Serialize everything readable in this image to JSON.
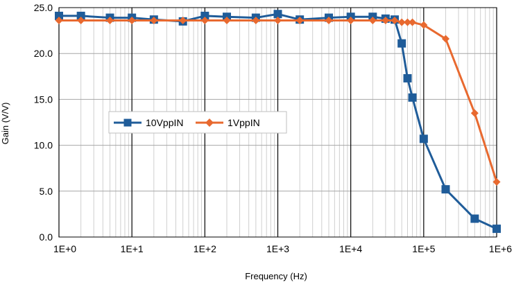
{
  "chart_data": {
    "type": "line",
    "xlabel": "Frequency (Hz)",
    "ylabel": "Gain (V/V)",
    "x_scale": "log",
    "xlim": [
      1,
      1000000
    ],
    "ylim": [
      0,
      25
    ],
    "x_ticks": [
      1,
      10,
      100,
      1000,
      10000,
      100000,
      1000000
    ],
    "x_tick_labels": [
      "1E+0",
      "1E+1",
      "1E+2",
      "1E+3",
      "1E+4",
      "1E+5",
      "1E+6"
    ],
    "y_ticks": [
      0,
      5,
      10,
      15,
      20,
      25
    ],
    "y_tick_labels": [
      "0.0",
      "5.0",
      "10.0",
      "15.0",
      "20.0",
      "25.0"
    ],
    "grid": true,
    "legend_position": "center-left",
    "series": [
      {
        "name": "10VppIN",
        "color": "#1f5c99",
        "marker": "square",
        "x": [
          1,
          2,
          5,
          10,
          20,
          50,
          100,
          200,
          500,
          1000,
          2000,
          5000,
          10000,
          20000,
          30000,
          40000,
          50000,
          60000,
          70000,
          100000,
          200000,
          500000,
          1000000
        ],
        "y": [
          24.1,
          24.1,
          23.9,
          23.9,
          23.7,
          23.5,
          24.1,
          24.0,
          23.9,
          24.3,
          23.7,
          23.9,
          24.0,
          24.0,
          23.8,
          23.7,
          21.1,
          17.3,
          15.2,
          10.7,
          5.2,
          2.0,
          0.9
        ]
      },
      {
        "name": "1VppIN",
        "color": "#e8692f",
        "marker": "diamond",
        "x": [
          1,
          2,
          5,
          10,
          20,
          50,
          100,
          200,
          500,
          1000,
          2000,
          5000,
          10000,
          20000,
          30000,
          40000,
          50000,
          60000,
          70000,
          100000,
          200000,
          500000,
          1000000
        ],
        "y": [
          23.6,
          23.6,
          23.6,
          23.6,
          23.6,
          23.6,
          23.6,
          23.6,
          23.6,
          23.6,
          23.6,
          23.6,
          23.6,
          23.6,
          23.6,
          23.6,
          23.4,
          23.4,
          23.4,
          23.1,
          21.6,
          13.5,
          6.0
        ]
      }
    ]
  }
}
